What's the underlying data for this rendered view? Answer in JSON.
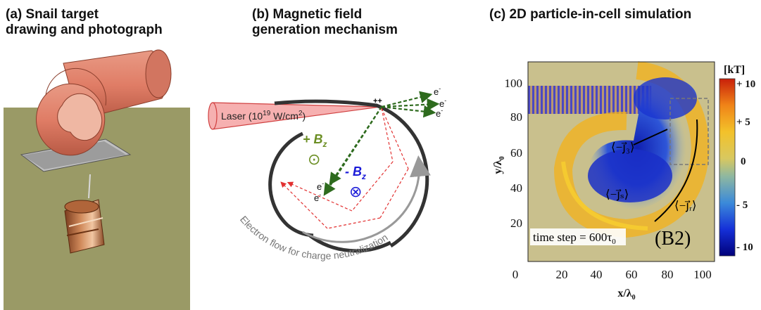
{
  "panel_a": {
    "title_line1": "(a) Snail target",
    "title_line2": "drawing and photograph"
  },
  "panel_b": {
    "title_line1": "(b) Magnetic field",
    "title_line2": "generation mechanism",
    "laser_label_prefix": "Laser (10",
    "laser_label_exp": "19",
    "laser_label_mid": " W/cm",
    "laser_label_exp2": "2",
    "laser_label_suffix": ")",
    "plus_marks": "++",
    "electron": "e",
    "minus": "-",
    "plus_bz_sign": "+ B",
    "minus_bz_sign": "- B",
    "bz_subscript": "z",
    "dot_symbol": "⊙",
    "cross_symbol": "⊗",
    "flow_label": "Electron flow for charge neutralization",
    "colors": {
      "laser": "#f2a0a0",
      "green": "#2e6b1e",
      "blue": "#1a1ad8",
      "red_dashed": "#e23030",
      "target": "#333333"
    }
  },
  "panel_c": {
    "title": "(c) 2D particle-in-cell simulation",
    "ylabel": "y/λ",
    "ylabel_sub": "0",
    "xlabel": "x/λ",
    "xlabel_sub": "0",
    "x_ticks": [
      "0",
      "20",
      "40",
      "60",
      "80",
      "100"
    ],
    "y_ticks": [
      "100",
      "80",
      "60",
      "40",
      "20"
    ],
    "colorbar_unit": "[kT]",
    "colorbar_ticks": [
      "+ 10",
      "+ 5",
      "0",
      "- 5",
      "- 10"
    ],
    "time_step": "time step = 600τ",
    "time_step_sub": "0",
    "panel_tag": "(B2)",
    "current_j3": "⟨−j⃗₃⟩",
    "current_js": "⟨−j⃗ₛ⟩",
    "current_jr": "⟨−j⃗ᵣ⟩"
  }
}
